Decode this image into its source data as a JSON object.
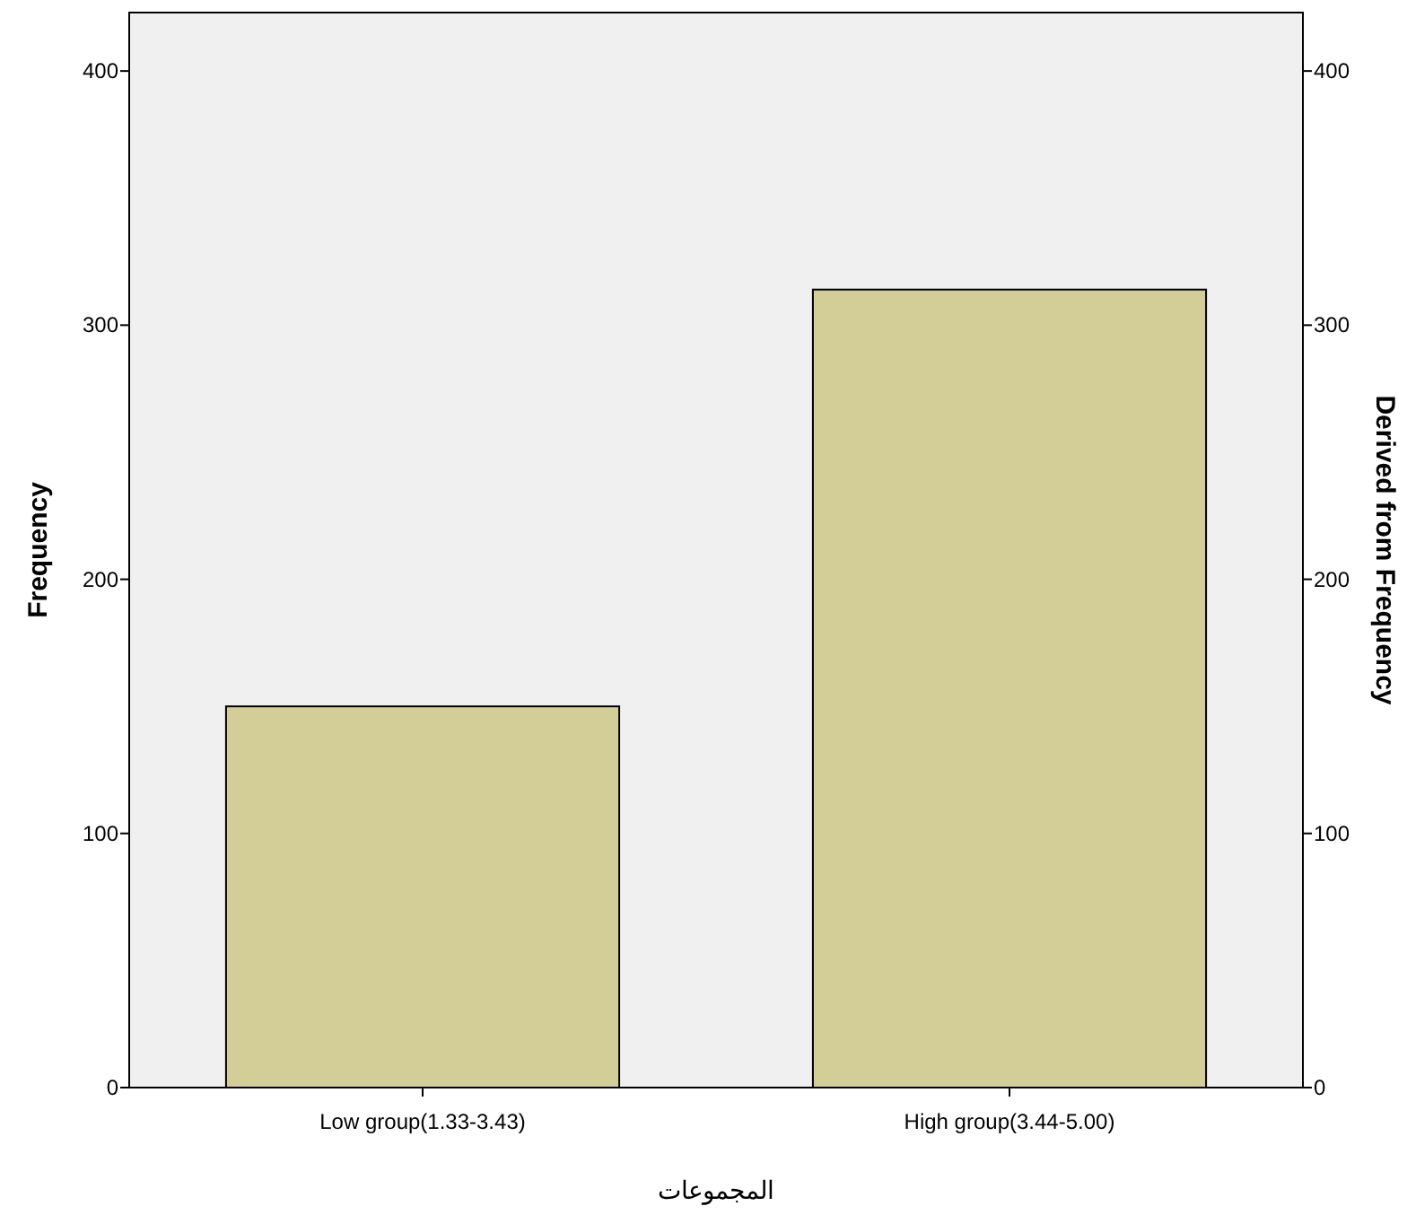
{
  "chart_data": {
    "type": "bar",
    "categories": [
      "Low group(1.33-3.43)",
      "High group(3.44-5.00)"
    ],
    "values": [
      150,
      314
    ],
    "color": "#d3ce97",
    "xlabel": "المجموعات",
    "ylabel": "Frequency",
    "y2label": "Derived from Frequency",
    "ylim": [
      0,
      423
    ],
    "yticks": [
      0,
      100,
      200,
      300,
      400
    ],
    "y2lim": [
      0,
      423
    ],
    "y2ticks": [
      0,
      100,
      200,
      300,
      400
    ]
  }
}
